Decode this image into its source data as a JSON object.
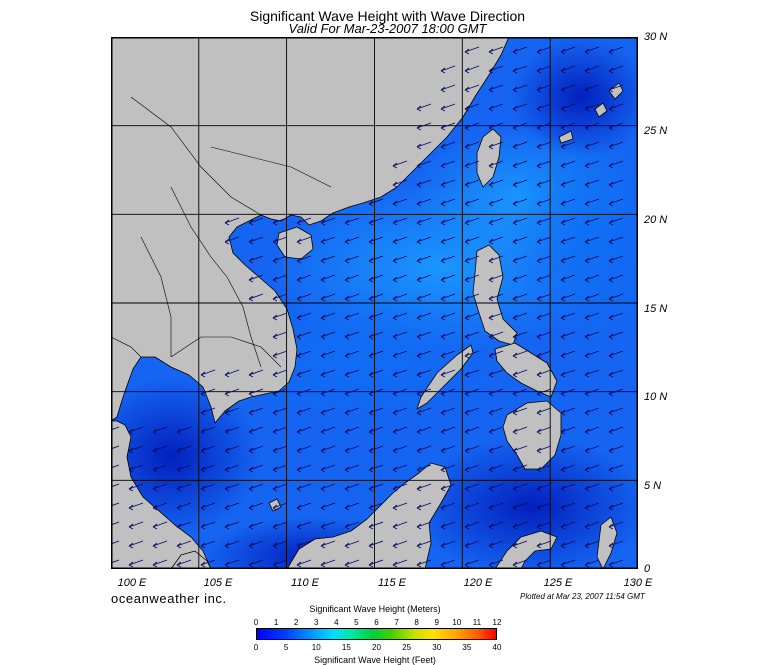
{
  "title": "Significant Wave Height with Wave Direction",
  "subtitle": "Valid For Mar-23-2007 18:00 GMT",
  "lat_labels": [
    "30 N",
    "25 N",
    "20 N",
    "15 N",
    "10 N",
    "5 N",
    "0"
  ],
  "lon_labels": [
    "100 E",
    "105 E",
    "110 E",
    "115 E",
    "120 E",
    "125 E",
    "130 E"
  ],
  "brand": "oceanweather inc.",
  "plotted": "Plotted at Mar 23, 2007 11:54 GMT",
  "colorbar": {
    "title_meters": "Significant Wave Height (Meters)",
    "title_feet": "Significant Wave Height (Feet)",
    "meters_ticks": [
      "0",
      "1",
      "2",
      "3",
      "4",
      "5",
      "6",
      "7",
      "8",
      "9",
      "10",
      "11",
      "12"
    ],
    "feet_ticks": [
      "0",
      "5",
      "10",
      "15",
      "20",
      "25",
      "30",
      "35",
      "40"
    ]
  },
  "map": {
    "lon_range": [
      100,
      130
    ],
    "lat_range": [
      0,
      30
    ],
    "grid_step_deg": 5,
    "arrow_direction": "towards southwest",
    "colors": {
      "land": "#c0c0c0",
      "sea_low": "#0030e0",
      "sea_mid": "#1060f0",
      "sea_high": "#1a8cff",
      "arrow": "#0a0a60"
    }
  }
}
